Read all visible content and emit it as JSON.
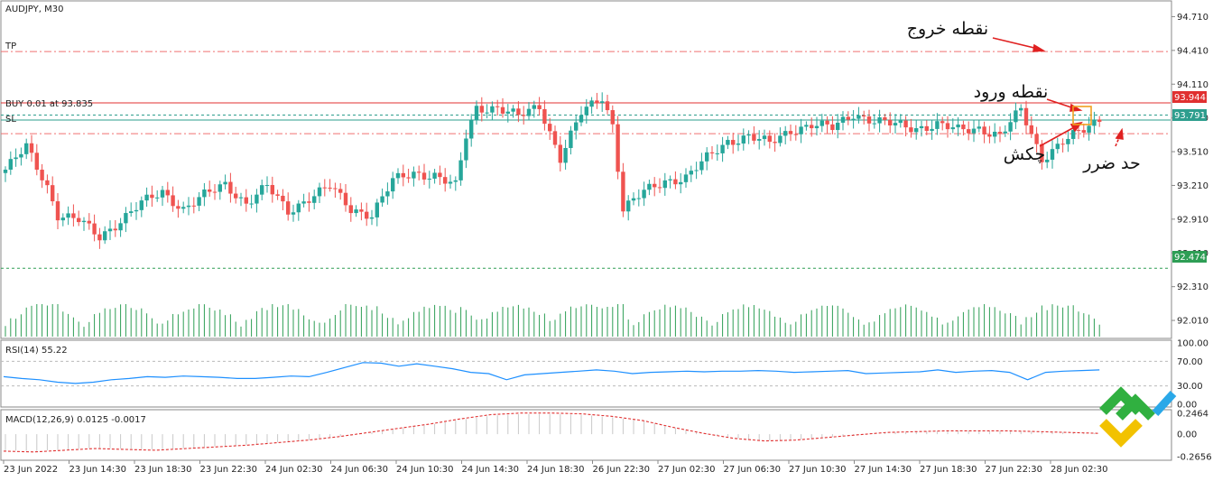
{
  "chart_data": {
    "type": "candlestick",
    "symbol_label": "AUDJPY, M30",
    "price_axis": {
      "range": [
        91.85,
        94.85
      ],
      "ticks": [
        "94.710",
        "94.410",
        "94.110",
        "93.810",
        "93.510",
        "93.210",
        "92.910",
        "92.610",
        "92.310",
        "92.010"
      ]
    },
    "time_axis": {
      "labels": [
        "23 Jun 2022",
        "23 Jun 14:30",
        "23 Jun 18:30",
        "23 Jun 22:30",
        "24 Jun 02:30",
        "24 Jun 06:30",
        "24 Jun 10:30",
        "24 Jun 14:30",
        "24 Jun 18:30",
        "26 Jun 22:30",
        "27 Jun 02:30",
        "27 Jun 06:30",
        "27 Jun 10:30",
        "27 Jun 14:30",
        "27 Jun 18:30",
        "27 Jun 22:30",
        "28 Jun 02:30"
      ]
    },
    "close_path": [
      [
        0,
        93.35
      ],
      [
        4,
        93.55
      ],
      [
        8,
        93.2
      ],
      [
        10,
        92.95
      ],
      [
        14,
        92.9
      ],
      [
        18,
        92.75
      ],
      [
        22,
        92.9
      ],
      [
        26,
        93.05
      ],
      [
        30,
        93.15
      ],
      [
        34,
        93.0
      ],
      [
        38,
        93.12
      ],
      [
        42,
        93.22
      ],
      [
        46,
        93.05
      ],
      [
        50,
        93.2
      ],
      [
        54,
        92.98
      ],
      [
        58,
        93.1
      ],
      [
        62,
        93.2
      ],
      [
        66,
        93.0
      ],
      [
        70,
        92.95
      ],
      [
        74,
        93.25
      ],
      [
        78,
        93.32
      ],
      [
        82,
        93.3
      ],
      [
        86,
        93.2
      ],
      [
        88,
        93.65
      ],
      [
        90,
        93.9
      ],
      [
        94,
        93.9
      ],
      [
        98,
        93.82
      ],
      [
        102,
        93.92
      ],
      [
        106,
        93.45
      ],
      [
        110,
        93.85
      ],
      [
        114,
        94.0
      ],
      [
        116,
        93.75
      ],
      [
        118,
        93.0
      ],
      [
        122,
        93.15
      ],
      [
        126,
        93.25
      ],
      [
        130,
        93.28
      ],
      [
        134,
        93.45
      ],
      [
        138,
        93.6
      ],
      [
        142,
        93.65
      ],
      [
        146,
        93.58
      ],
      [
        150,
        93.7
      ],
      [
        154,
        93.75
      ],
      [
        158,
        93.72
      ],
      [
        162,
        93.85
      ],
      [
        166,
        93.78
      ],
      [
        170,
        93.75
      ],
      [
        174,
        93.72
      ],
      [
        178,
        93.75
      ],
      [
        182,
        93.7
      ],
      [
        186,
        93.72
      ],
      [
        190,
        93.65
      ],
      [
        194,
        93.88
      ],
      [
        198,
        93.45
      ],
      [
        202,
        93.6
      ],
      [
        206,
        93.7
      ],
      [
        209,
        93.8
      ]
    ],
    "levels": [
      {
        "name": "TP",
        "label": "TP",
        "price": 94.4,
        "color": "#f07070",
        "style": "dashdot"
      },
      {
        "name": "buy-order",
        "label": "BUY 0.01 at 93.835",
        "price": 93.835,
        "color": "#2e9e8e",
        "style": "dashed"
      },
      {
        "name": "ask",
        "label": "",
        "price": 93.944,
        "color": "#e03030",
        "style": "solid",
        "tag": "93.944"
      },
      {
        "name": "bid",
        "label": "",
        "price": 93.791,
        "color": "#2e9e8e",
        "style": "solid",
        "tag": "93.791"
      },
      {
        "name": "SL",
        "label": "SL",
        "price": 93.67,
        "color": "#f07070",
        "style": "dashdot"
      },
      {
        "name": "lower",
        "label": "",
        "price": 92.474,
        "color": "#2e9e55",
        "style": "dashed",
        "tag": "92.474"
      }
    ],
    "rsi": {
      "label": "RSI(14) 55.22",
      "ticks": [
        "100.00",
        "70.00",
        "30.00",
        "0.00"
      ],
      "levels": [
        70,
        30
      ],
      "values": [
        45,
        42,
        40,
        36,
        34,
        36,
        40,
        42,
        45,
        44,
        46,
        45,
        44,
        42,
        42,
        44,
        46,
        45,
        52,
        60,
        68,
        67,
        62,
        66,
        62,
        58,
        52,
        50,
        40,
        48,
        50,
        52,
        54,
        56,
        54,
        50,
        52,
        53,
        54,
        53,
        54,
        54,
        55,
        54,
        52,
        53,
        54,
        55,
        50,
        51,
        52,
        53,
        56,
        52,
        54,
        55,
        52,
        40,
        52,
        54,
        55,
        56
      ]
    },
    "macd": {
      "label": "MACD(12,26,9) 0.0125 -0.0017",
      "ticks": [
        "0.2464",
        "0.00",
        "-0.2656"
      ],
      "signal": [
        -0.2,
        -0.21,
        -0.19,
        -0.17,
        -0.18,
        -0.19,
        -0.17,
        -0.15,
        -0.13,
        -0.1,
        -0.07,
        -0.03,
        0.02,
        0.07,
        0.12,
        0.18,
        0.23,
        0.25,
        0.25,
        0.24,
        0.21,
        0.16,
        0.08,
        0.01,
        -0.05,
        -0.08,
        -0.07,
        -0.04,
        -0.01,
        0.02,
        0.03,
        0.04,
        0.04,
        0.04,
        0.03,
        0.02,
        0.01
      ]
    },
    "annotations": [
      {
        "text": "نقطه خروج"
      },
      {
        "text": "نقطه ورود"
      },
      {
        "text": "چکش"
      },
      {
        "text": "حد ضرر"
      }
    ]
  }
}
